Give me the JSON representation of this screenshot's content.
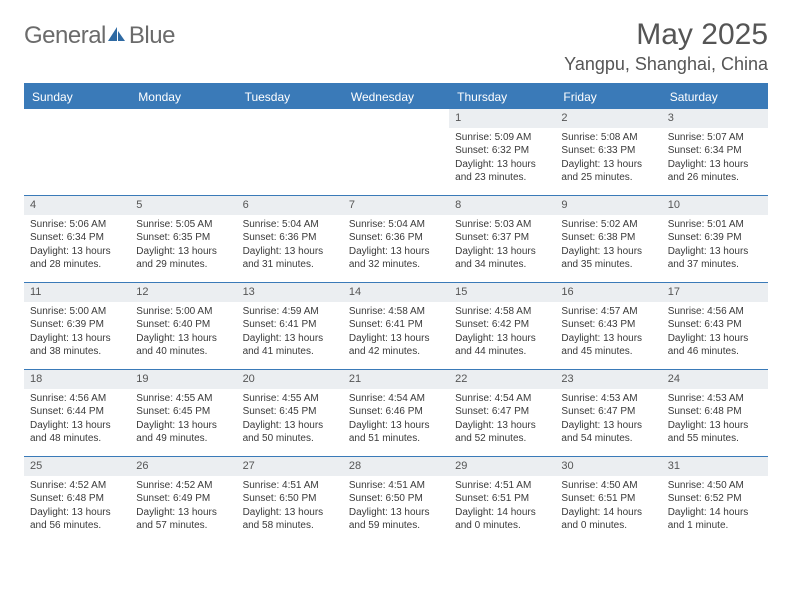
{
  "logo": {
    "text_general": "General",
    "text_blue": "Blue"
  },
  "header": {
    "month": "May 2025",
    "location": "Yangpu, Shanghai, China"
  },
  "colors": {
    "brand_blue": "#3a7ab8",
    "header_band_bg": "#3a7ab8",
    "daynum_bg": "#ebeef1",
    "text": "#3a3a3a",
    "page_bg": "#ffffff"
  },
  "weekdays": [
    "Sunday",
    "Monday",
    "Tuesday",
    "Wednesday",
    "Thursday",
    "Friday",
    "Saturday"
  ],
  "weeks": [
    [
      null,
      null,
      null,
      null,
      {
        "day": "1",
        "sunrise": "Sunrise: 5:09 AM",
        "sunset": "Sunset: 6:32 PM",
        "daylight": "Daylight: 13 hours and 23 minutes."
      },
      {
        "day": "2",
        "sunrise": "Sunrise: 5:08 AM",
        "sunset": "Sunset: 6:33 PM",
        "daylight": "Daylight: 13 hours and 25 minutes."
      },
      {
        "day": "3",
        "sunrise": "Sunrise: 5:07 AM",
        "sunset": "Sunset: 6:34 PM",
        "daylight": "Daylight: 13 hours and 26 minutes."
      }
    ],
    [
      {
        "day": "4",
        "sunrise": "Sunrise: 5:06 AM",
        "sunset": "Sunset: 6:34 PM",
        "daylight": "Daylight: 13 hours and 28 minutes."
      },
      {
        "day": "5",
        "sunrise": "Sunrise: 5:05 AM",
        "sunset": "Sunset: 6:35 PM",
        "daylight": "Daylight: 13 hours and 29 minutes."
      },
      {
        "day": "6",
        "sunrise": "Sunrise: 5:04 AM",
        "sunset": "Sunset: 6:36 PM",
        "daylight": "Daylight: 13 hours and 31 minutes."
      },
      {
        "day": "7",
        "sunrise": "Sunrise: 5:04 AM",
        "sunset": "Sunset: 6:36 PM",
        "daylight": "Daylight: 13 hours and 32 minutes."
      },
      {
        "day": "8",
        "sunrise": "Sunrise: 5:03 AM",
        "sunset": "Sunset: 6:37 PM",
        "daylight": "Daylight: 13 hours and 34 minutes."
      },
      {
        "day": "9",
        "sunrise": "Sunrise: 5:02 AM",
        "sunset": "Sunset: 6:38 PM",
        "daylight": "Daylight: 13 hours and 35 minutes."
      },
      {
        "day": "10",
        "sunrise": "Sunrise: 5:01 AM",
        "sunset": "Sunset: 6:39 PM",
        "daylight": "Daylight: 13 hours and 37 minutes."
      }
    ],
    [
      {
        "day": "11",
        "sunrise": "Sunrise: 5:00 AM",
        "sunset": "Sunset: 6:39 PM",
        "daylight": "Daylight: 13 hours and 38 minutes."
      },
      {
        "day": "12",
        "sunrise": "Sunrise: 5:00 AM",
        "sunset": "Sunset: 6:40 PM",
        "daylight": "Daylight: 13 hours and 40 minutes."
      },
      {
        "day": "13",
        "sunrise": "Sunrise: 4:59 AM",
        "sunset": "Sunset: 6:41 PM",
        "daylight": "Daylight: 13 hours and 41 minutes."
      },
      {
        "day": "14",
        "sunrise": "Sunrise: 4:58 AM",
        "sunset": "Sunset: 6:41 PM",
        "daylight": "Daylight: 13 hours and 42 minutes."
      },
      {
        "day": "15",
        "sunrise": "Sunrise: 4:58 AM",
        "sunset": "Sunset: 6:42 PM",
        "daylight": "Daylight: 13 hours and 44 minutes."
      },
      {
        "day": "16",
        "sunrise": "Sunrise: 4:57 AM",
        "sunset": "Sunset: 6:43 PM",
        "daylight": "Daylight: 13 hours and 45 minutes."
      },
      {
        "day": "17",
        "sunrise": "Sunrise: 4:56 AM",
        "sunset": "Sunset: 6:43 PM",
        "daylight": "Daylight: 13 hours and 46 minutes."
      }
    ],
    [
      {
        "day": "18",
        "sunrise": "Sunrise: 4:56 AM",
        "sunset": "Sunset: 6:44 PM",
        "daylight": "Daylight: 13 hours and 48 minutes."
      },
      {
        "day": "19",
        "sunrise": "Sunrise: 4:55 AM",
        "sunset": "Sunset: 6:45 PM",
        "daylight": "Daylight: 13 hours and 49 minutes."
      },
      {
        "day": "20",
        "sunrise": "Sunrise: 4:55 AM",
        "sunset": "Sunset: 6:45 PM",
        "daylight": "Daylight: 13 hours and 50 minutes."
      },
      {
        "day": "21",
        "sunrise": "Sunrise: 4:54 AM",
        "sunset": "Sunset: 6:46 PM",
        "daylight": "Daylight: 13 hours and 51 minutes."
      },
      {
        "day": "22",
        "sunrise": "Sunrise: 4:54 AM",
        "sunset": "Sunset: 6:47 PM",
        "daylight": "Daylight: 13 hours and 52 minutes."
      },
      {
        "day": "23",
        "sunrise": "Sunrise: 4:53 AM",
        "sunset": "Sunset: 6:47 PM",
        "daylight": "Daylight: 13 hours and 54 minutes."
      },
      {
        "day": "24",
        "sunrise": "Sunrise: 4:53 AM",
        "sunset": "Sunset: 6:48 PM",
        "daylight": "Daylight: 13 hours and 55 minutes."
      }
    ],
    [
      {
        "day": "25",
        "sunrise": "Sunrise: 4:52 AM",
        "sunset": "Sunset: 6:48 PM",
        "daylight": "Daylight: 13 hours and 56 minutes."
      },
      {
        "day": "26",
        "sunrise": "Sunrise: 4:52 AM",
        "sunset": "Sunset: 6:49 PM",
        "daylight": "Daylight: 13 hours and 57 minutes."
      },
      {
        "day": "27",
        "sunrise": "Sunrise: 4:51 AM",
        "sunset": "Sunset: 6:50 PM",
        "daylight": "Daylight: 13 hours and 58 minutes."
      },
      {
        "day": "28",
        "sunrise": "Sunrise: 4:51 AM",
        "sunset": "Sunset: 6:50 PM",
        "daylight": "Daylight: 13 hours and 59 minutes."
      },
      {
        "day": "29",
        "sunrise": "Sunrise: 4:51 AM",
        "sunset": "Sunset: 6:51 PM",
        "daylight": "Daylight: 14 hours and 0 minutes."
      },
      {
        "day": "30",
        "sunrise": "Sunrise: 4:50 AM",
        "sunset": "Sunset: 6:51 PM",
        "daylight": "Daylight: 14 hours and 0 minutes."
      },
      {
        "day": "31",
        "sunrise": "Sunrise: 4:50 AM",
        "sunset": "Sunset: 6:52 PM",
        "daylight": "Daylight: 14 hours and 1 minute."
      }
    ]
  ]
}
